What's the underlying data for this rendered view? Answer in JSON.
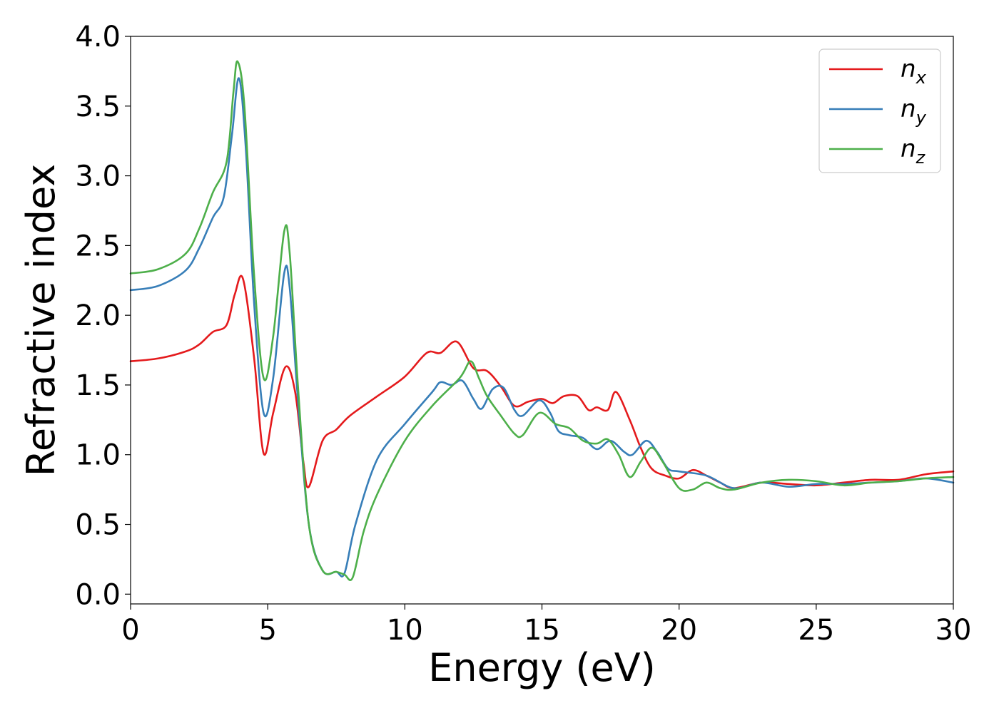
{
  "chart_data": {
    "type": "line",
    "xlabel": "Energy (eV)",
    "ylabel": "Refractive index",
    "xlim": [
      0,
      30
    ],
    "ylim": [
      -0.07,
      4.0
    ],
    "xticks": [
      0,
      5,
      10,
      15,
      20,
      25,
      30
    ],
    "xtick_labels": [
      "0",
      "5",
      "10",
      "15",
      "20",
      "25",
      "30"
    ],
    "yticks": [
      0.0,
      0.5,
      1.0,
      1.5,
      2.0,
      2.5,
      3.0,
      3.5,
      4.0
    ],
    "ytick_labels": [
      "0.0",
      "0.5",
      "1.0",
      "1.5",
      "2.0",
      "2.5",
      "3.0",
      "3.5",
      "4.0"
    ],
    "grid": false,
    "legend_position": "top-right",
    "series": [
      {
        "name": "n",
        "subscript": "x",
        "color": "#e41a1c",
        "x": [
          0,
          1,
          2,
          2.5,
          3,
          3.5,
          3.8,
          4.1,
          4.5,
          4.85,
          5.2,
          5.65,
          6.0,
          6.3,
          6.5,
          7.0,
          7.5,
          8.0,
          9.0,
          10.0,
          10.8,
          11.3,
          11.9,
          12.5,
          13.0,
          13.5,
          14.0,
          14.5,
          15.0,
          15.4,
          15.8,
          16.3,
          16.7,
          17.0,
          17.4,
          17.7,
          18.2,
          18.6,
          19.0,
          19.5,
          20.0,
          20.5,
          21.0,
          21.5,
          22.0,
          23.0,
          24.0,
          25.0,
          26.0,
          27.0,
          28.0,
          29.0,
          30.0
        ],
        "y": [
          1.67,
          1.69,
          1.74,
          1.79,
          1.88,
          1.93,
          2.15,
          2.26,
          1.7,
          1.01,
          1.3,
          1.63,
          1.45,
          0.95,
          0.77,
          1.1,
          1.18,
          1.28,
          1.42,
          1.56,
          1.73,
          1.73,
          1.81,
          1.62,
          1.6,
          1.49,
          1.35,
          1.38,
          1.4,
          1.37,
          1.42,
          1.42,
          1.32,
          1.34,
          1.32,
          1.45,
          1.25,
          1.05,
          0.9,
          0.85,
          0.83,
          0.89,
          0.85,
          0.8,
          0.76,
          0.8,
          0.79,
          0.78,
          0.8,
          0.82,
          0.82,
          0.86,
          0.88
        ]
      },
      {
        "name": "n",
        "subscript": "y",
        "color": "#377eb8",
        "x": [
          0,
          1,
          2,
          2.5,
          3,
          3.4,
          3.7,
          3.95,
          4.2,
          4.5,
          4.85,
          5.2,
          5.6,
          5.8,
          6.1,
          6.5,
          7.0,
          7.5,
          7.8,
          8.2,
          9.0,
          10.0,
          11.0,
          11.3,
          11.7,
          12.1,
          12.5,
          12.8,
          13.2,
          13.6,
          14.0,
          14.3,
          14.9,
          15.3,
          15.6,
          16.0,
          16.5,
          17.0,
          17.5,
          18.0,
          18.3,
          18.8,
          19.2,
          19.6,
          20.0,
          21.0,
          22.0,
          23.0,
          24.0,
          25.0,
          26.0,
          27.0,
          28.0,
          29.0,
          30.0
        ],
        "y": [
          2.18,
          2.21,
          2.32,
          2.48,
          2.7,
          2.85,
          3.3,
          3.7,
          3.2,
          2.1,
          1.3,
          1.55,
          2.3,
          2.2,
          1.4,
          0.5,
          0.17,
          0.16,
          0.15,
          0.5,
          0.97,
          1.22,
          1.45,
          1.52,
          1.5,
          1.53,
          1.4,
          1.33,
          1.47,
          1.48,
          1.32,
          1.28,
          1.39,
          1.3,
          1.17,
          1.14,
          1.12,
          1.04,
          1.1,
          1.02,
          1.0,
          1.1,
          1.02,
          0.9,
          0.88,
          0.85,
          0.76,
          0.8,
          0.77,
          0.79,
          0.79,
          0.8,
          0.81,
          0.83,
          0.8
        ]
      },
      {
        "name": "n",
        "subscript": "z",
        "color": "#4daf4a",
        "x": [
          0,
          1,
          2,
          2.5,
          3,
          3.5,
          3.75,
          3.9,
          4.15,
          4.5,
          4.85,
          5.2,
          5.6,
          5.8,
          6.1,
          6.5,
          7.0,
          7.5,
          7.8,
          8.1,
          8.5,
          9.0,
          10.0,
          11.0,
          12.0,
          12.4,
          12.7,
          13.0,
          13.5,
          14.0,
          14.3,
          14.9,
          15.5,
          16.0,
          16.5,
          17.0,
          17.4,
          17.8,
          18.2,
          18.6,
          19.0,
          19.4,
          20.0,
          20.5,
          21.0,
          21.5,
          22.0,
          23.0,
          24.0,
          25.0,
          26.0,
          27.0,
          28.0,
          29.0,
          30.0
        ],
        "y": [
          2.3,
          2.33,
          2.44,
          2.62,
          2.88,
          3.1,
          3.6,
          3.82,
          3.5,
          2.3,
          1.55,
          1.85,
          2.6,
          2.45,
          1.5,
          0.5,
          0.17,
          0.16,
          0.14,
          0.12,
          0.45,
          0.72,
          1.1,
          1.35,
          1.55,
          1.67,
          1.55,
          1.42,
          1.28,
          1.15,
          1.14,
          1.3,
          1.22,
          1.19,
          1.1,
          1.08,
          1.11,
          1.0,
          0.84,
          0.95,
          1.05,
          0.95,
          0.76,
          0.75,
          0.8,
          0.76,
          0.75,
          0.8,
          0.82,
          0.81,
          0.78,
          0.8,
          0.81,
          0.83,
          0.84
        ]
      }
    ]
  }
}
